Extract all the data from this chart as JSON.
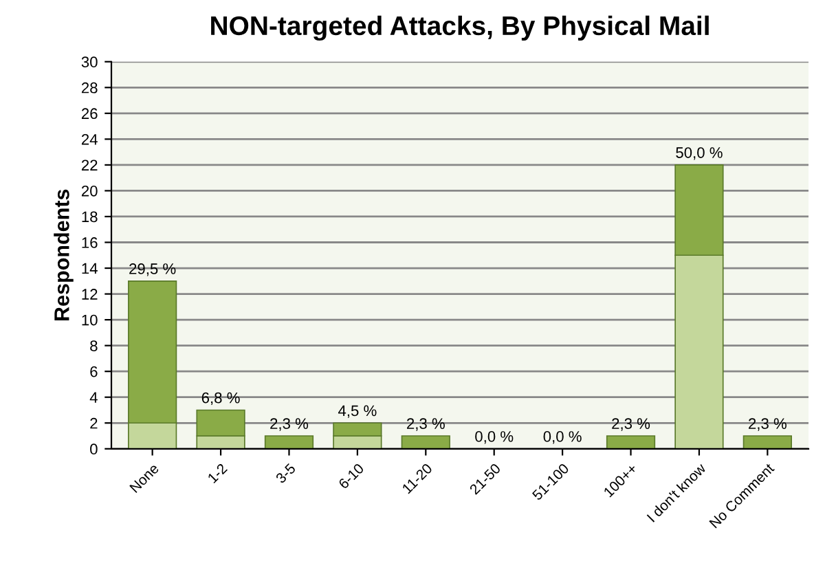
{
  "chart_data": {
    "type": "bar",
    "title": "NON-targeted Attacks, By Physical Mail",
    "ylabel": "Respondents",
    "categories": [
      "None",
      "1-2",
      "3-5",
      "6-10",
      "11-20",
      "21-50",
      "51-100",
      "100++",
      "I don't know",
      "No Comment"
    ],
    "stacked": true,
    "series": [
      {
        "color": "#c4d79b",
        "values": [
          2,
          1,
          0,
          1,
          0,
          0,
          0,
          0,
          15,
          0
        ]
      },
      {
        "color": "#8aab47",
        "values": [
          11,
          2,
          1,
          1,
          1,
          0,
          0,
          1,
          7,
          1
        ]
      }
    ],
    "annotations": [
      {
        "text": "29,5 %",
        "x": "None",
        "y": 13
      },
      {
        "text": "6,8 %",
        "x": "1-2",
        "y": 3
      },
      {
        "text": "2,3 %",
        "x": "3-5",
        "y": 1
      },
      {
        "text": "4,5 %",
        "x": "6-10",
        "y": 2
      },
      {
        "text": "2,3 %",
        "x": "11-20",
        "y": 1
      },
      {
        "text": "0,0 %",
        "x": "21-50",
        "y": 0
      },
      {
        "text": "0,0 %",
        "x": "51-100",
        "y": 0
      },
      {
        "text": "2,3 %",
        "x": "100++",
        "y": 1
      },
      {
        "text": "50,0 %",
        "x": "I don't know",
        "y": 22
      },
      {
        "text": "2,3 %",
        "x": "No Comment",
        "y": 1
      }
    ],
    "ylim": [
      0,
      30
    ],
    "yticks": [
      0,
      2,
      4,
      6,
      8,
      10,
      12,
      14,
      16,
      18,
      20,
      22,
      24,
      26,
      28,
      30
    ],
    "grid": "y"
  }
}
